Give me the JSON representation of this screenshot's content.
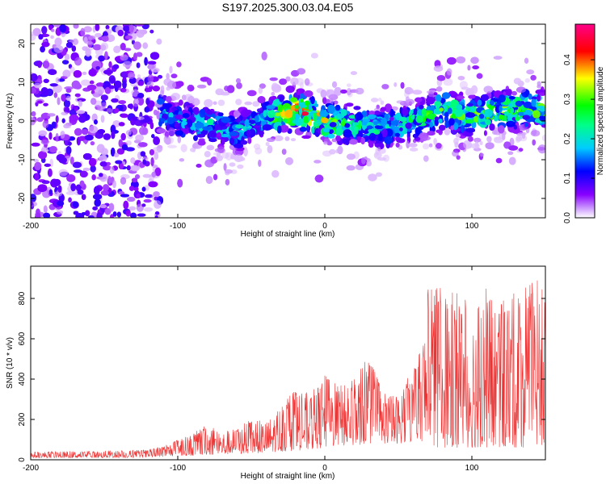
{
  "page": {
    "title": "S197.2025.300.03.04.E05"
  },
  "chart_data": [
    {
      "type": "heatmap",
      "xlabel": "Height of straight line (km)",
      "ylabel": "Frequency (Hz)",
      "xlim": [
        -200,
        150
      ],
      "ylim": [
        -25,
        25
      ],
      "xticks": [
        -200,
        -100,
        0,
        100
      ],
      "yticks": [
        -20,
        -10,
        0,
        10,
        20
      ],
      "colorbar": {
        "label": "Normalized spectral amplitude",
        "range": [
          0,
          0.49
        ],
        "ticks": [
          0.0,
          0.1,
          0.2,
          0.3,
          0.4
        ],
        "tick_labels": [
          "0.0",
          "0.1",
          "0.2",
          "0.3",
          "0.4"
        ],
        "colors": [
          "#ffffff",
          "#8800ff",
          "#0000ff",
          "#00ffff",
          "#00ff00",
          "#ffff00",
          "#ff0000",
          "#ff0080"
        ]
      },
      "ridge": {
        "description_points_x": [
          -115,
          -100,
          -80,
          -60,
          -40,
          -20,
          0,
          20,
          40,
          60,
          80,
          100,
          120,
          150
        ],
        "center_hz": [
          3,
          0,
          -1,
          -3,
          1,
          3,
          0,
          -1,
          -2,
          0,
          3,
          1,
          3,
          3
        ],
        "peak_amplitude": [
          0.2,
          0.2,
          0.22,
          0.2,
          0.22,
          0.45,
          0.35,
          0.25,
          0.22,
          0.25,
          0.3,
          0.28,
          0.32,
          0.3
        ]
      }
    },
    {
      "type": "line",
      "xlabel": "Height of straight line (km)",
      "ylabel": "SNR (10 * v/v)",
      "xlim": [
        -200,
        150
      ],
      "ylim": [
        0,
        960
      ],
      "xticks": [
        -200,
        -100,
        0,
        100
      ],
      "yticks": [
        0,
        200,
        400,
        600,
        800
      ],
      "color": "#ee3333",
      "envelope": {
        "x": [
          -200,
          -150,
          -120,
          -110,
          -100,
          -90,
          -80,
          -70,
          -60,
          -50,
          -40,
          -30,
          -20,
          -10,
          0,
          10,
          20,
          30,
          40,
          50,
          60,
          65,
          70,
          80,
          90,
          100,
          110,
          120,
          130,
          140,
          150
        ],
        "min": [
          10,
          10,
          10,
          15,
          20,
          20,
          25,
          25,
          30,
          30,
          35,
          40,
          45,
          50,
          60,
          70,
          70,
          80,
          80,
          80,
          90,
          100,
          60,
          60,
          60,
          60,
          60,
          60,
          60,
          60,
          60
        ],
        "max": [
          40,
          45,
          50,
          70,
          100,
          130,
          180,
          140,
          160,
          200,
          190,
          270,
          350,
          330,
          420,
          380,
          400,
          520,
          330,
          330,
          460,
          540,
          870,
          860,
          850,
          770,
          860,
          780,
          840,
          880,
          940
        ]
      }
    }
  ]
}
